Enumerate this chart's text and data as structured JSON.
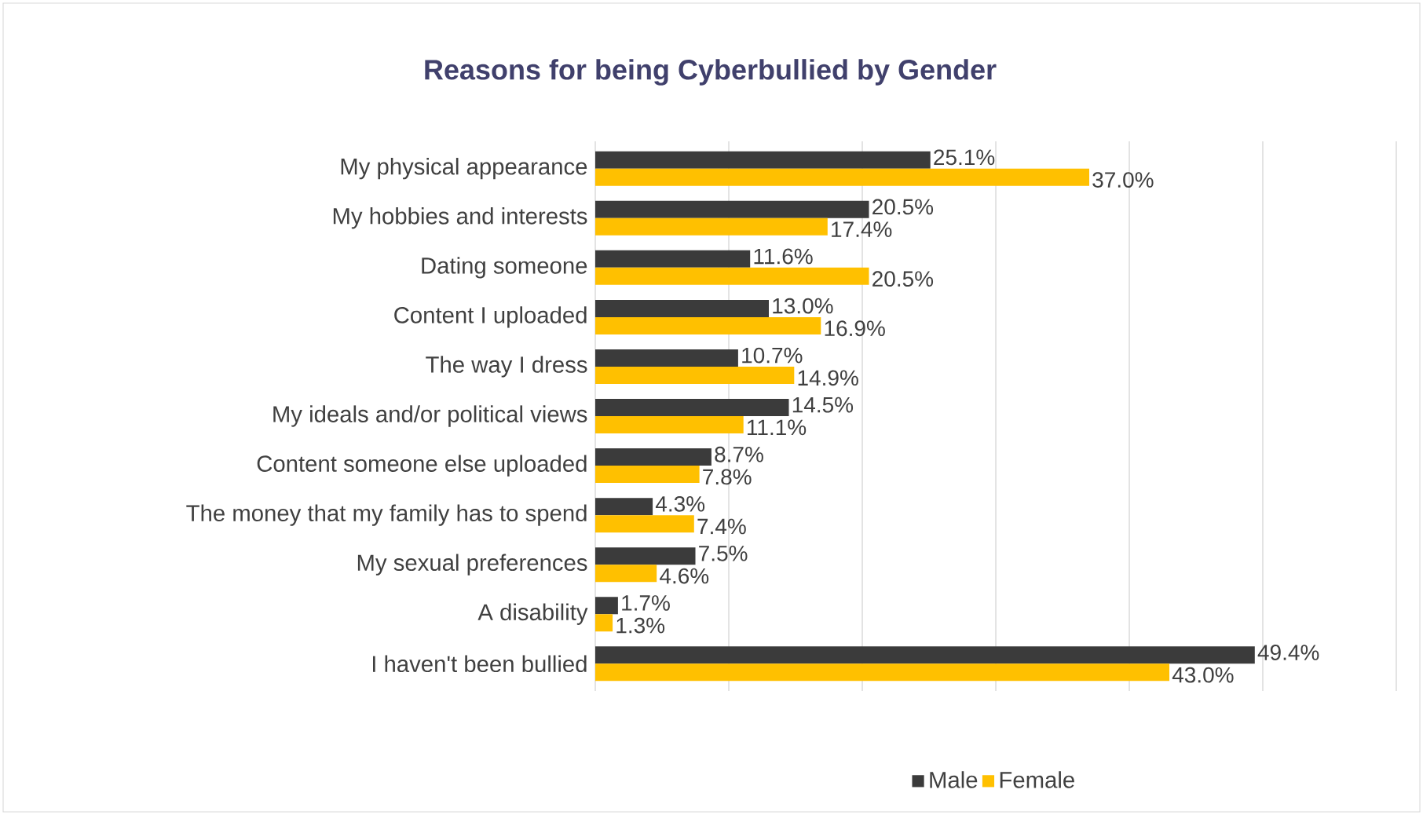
{
  "chart_data": {
    "type": "bar",
    "orientation": "horizontal",
    "title": "Reasons for being Cyberbullied by Gender",
    "categories": [
      "My physical appearance",
      "My hobbies and interests",
      "Dating someone",
      "Content I uploaded",
      "The way I dress",
      "My ideals and/or political views",
      "Content someone else uploaded",
      "The money that my family has to spend",
      "My sexual preferences",
      "A disability",
      "I haven't been bullied"
    ],
    "series": [
      {
        "name": "Male",
        "color": "#3b3b3b",
        "values": [
          25.1,
          20.5,
          11.6,
          13.0,
          10.7,
          14.5,
          8.7,
          4.3,
          7.5,
          1.7,
          49.4
        ],
        "value_labels": [
          "25.1%",
          "20.5%",
          "11.6%",
          "13.0%",
          "10.7%",
          "14.5%",
          "8.7%",
          "4.3%",
          "7.5%",
          "1.7%",
          "49.4%"
        ]
      },
      {
        "name": "Female",
        "color": "#ffc000",
        "values": [
          37.0,
          17.4,
          20.5,
          16.9,
          14.9,
          11.1,
          7.8,
          7.4,
          4.6,
          1.3,
          43.0
        ],
        "value_labels": [
          "37.0%",
          "17.4%",
          "20.5%",
          "16.9%",
          "14.9%",
          "11.1%",
          "7.8%",
          "7.4%",
          "4.6%",
          "1.3%",
          "43.0%"
        ]
      }
    ],
    "xlim": [
      0,
      60
    ],
    "xticks": [
      {
        "value": 0,
        "label": null
      },
      {
        "value": 10,
        "label": null
      },
      {
        "value": 20,
        "label": null
      },
      {
        "value": 30,
        "label": null
      },
      {
        "value": 40,
        "label": null
      },
      {
        "value": 50,
        "label": null
      },
      {
        "value": 60,
        "label": null
      }
    ],
    "grid": "x",
    "legend": "bottom",
    "tick_labels": "y"
  }
}
